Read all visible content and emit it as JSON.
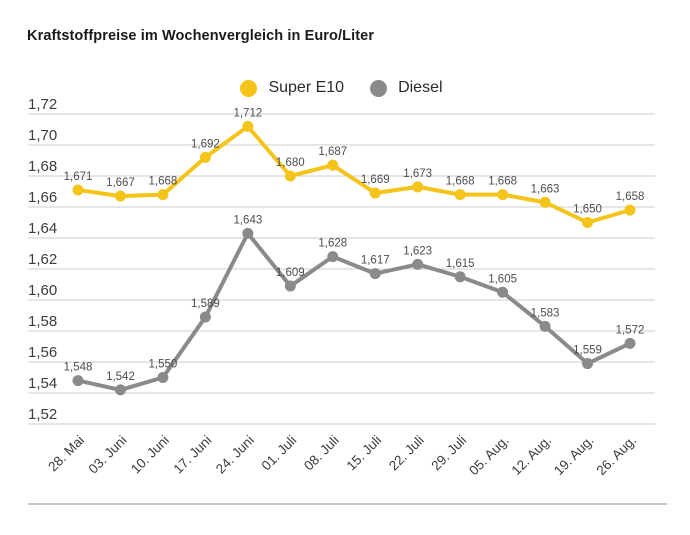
{
  "chart_data": {
    "type": "line",
    "title": "Kraftstoffpreise im Wochenvergleich in Euro/Liter",
    "xlabel": "",
    "ylabel": "",
    "unit": "Euro/Liter",
    "grid": true,
    "legend_position": "top-center",
    "background": "#ffffff",
    "grid_color": "#cccccc",
    "axis_text_color": "#3c3c3c",
    "value_label_color": "#4d4d4d",
    "ylim": [
      1.52,
      1.72
    ],
    "ytick_step": 0.02,
    "ytick_labels": [
      "1,72",
      "1,70",
      "1,68",
      "1,66",
      "1,64",
      "1,62",
      "1,60",
      "1,58",
      "1,56",
      "1,54",
      "1,52"
    ],
    "decimal_separator": ",",
    "categories": [
      "28. Mai",
      "03. Juni",
      "10. Juni",
      "17. Juni",
      "24. Juni",
      "01. Juli",
      "08. Juli",
      "15. Juli",
      "22. Juli",
      "29. Juli",
      "05. Aug.",
      "12. Aug.",
      "19. Aug.",
      "26. Aug."
    ],
    "series": [
      {
        "name": "Super E10",
        "color": "#f4c41b",
        "values": [
          1.671,
          1.667,
          1.668,
          1.692,
          1.712,
          1.68,
          1.687,
          1.669,
          1.673,
          1.668,
          1.668,
          1.663,
          1.65,
          1.658
        ],
        "point_labels": [
          "1,671",
          "1,667",
          "1,668",
          "1,692",
          "1,712",
          "1,680",
          "1,687",
          "1,669",
          "1,673",
          "1,668",
          "1,668",
          "1,663",
          "1,650",
          "1,658"
        ]
      },
      {
        "name": "Diesel",
        "color": "#8a8a8a",
        "values": [
          1.548,
          1.542,
          1.55,
          1.589,
          1.643,
          1.609,
          1.628,
          1.617,
          1.623,
          1.615,
          1.605,
          1.583,
          1.559,
          1.572
        ],
        "point_labels": [
          "1,548",
          "1,542",
          "1,550",
          "1,589",
          "1,643",
          "1,609",
          "1,628",
          "1,617",
          "1,623",
          "1,615",
          "1,605",
          "1,583",
          "1,559",
          "1,572"
        ]
      }
    ]
  }
}
